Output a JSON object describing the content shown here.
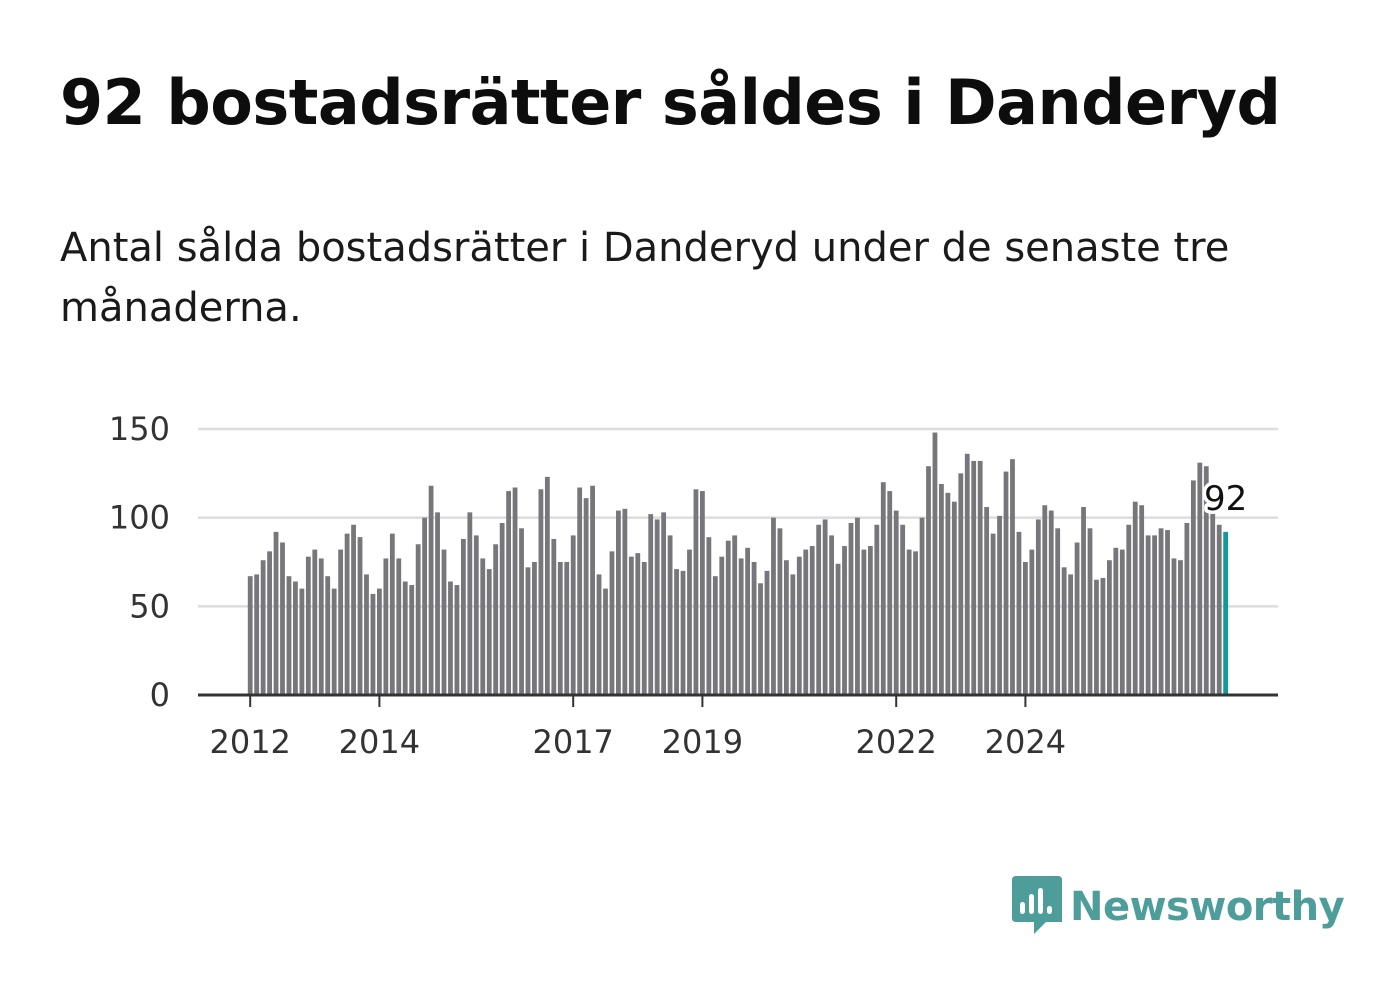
{
  "header": {
    "title": "92 bostadsrätter såldes i Danderyd",
    "subtitle": "Antal sålda bostadsrätter i Danderyd under de senaste tre månaderna."
  },
  "brand": {
    "name": "Newsworthy",
    "icon": "newsworthy-logo-icon"
  },
  "colors": {
    "bar": "#77767b",
    "highlight": "#129a99",
    "grid": "#dddddd",
    "axis": "#333333",
    "brand": "#4d9e9a"
  },
  "chart_data": {
    "type": "bar",
    "title": "Antal sålda bostadsrätter i Danderyd",
    "xlabel": "",
    "ylabel": "",
    "ylim": [
      0,
      150
    ],
    "yticks": [
      0,
      50,
      100,
      150
    ],
    "xtick_labels": [
      {
        "label": "2012",
        "index": 0
      },
      {
        "label": "2014",
        "index": 20
      },
      {
        "label": "2017",
        "index": 50
      },
      {
        "label": "2019",
        "index": 70
      },
      {
        "label": "2022",
        "index": 100
      },
      {
        "label": "2024",
        "index": 120
      }
    ],
    "values": [
      67,
      68,
      76,
      81,
      92,
      86,
      67,
      64,
      60,
      78,
      82,
      77,
      67,
      60,
      82,
      91,
      96,
      89,
      68,
      57,
      60,
      77,
      91,
      77,
      64,
      62,
      85,
      100,
      118,
      103,
      82,
      64,
      62,
      88,
      103,
      90,
      77,
      71,
      85,
      97,
      115,
      117,
      94,
      72,
      75,
      116,
      123,
      88,
      75,
      75,
      90,
      117,
      111,
      118,
      68,
      60,
      81,
      104,
      105,
      78,
      80,
      75,
      102,
      99,
      103,
      90,
      71,
      70,
      82,
      116,
      115,
      89,
      67,
      78,
      87,
      90,
      77,
      83,
      75,
      63,
      70,
      100,
      94,
      76,
      68,
      78,
      82,
      84,
      96,
      99,
      90,
      74,
      84,
      97,
      100,
      82,
      84,
      96,
      120,
      115,
      104,
      96,
      82,
      81,
      100,
      129,
      148,
      119,
      114,
      109,
      125,
      136,
      132,
      132,
      106,
      91,
      101,
      126,
      133,
      92,
      75,
      82,
      99,
      107,
      104,
      94,
      72,
      68,
      86,
      106,
      94,
      65,
      66,
      76,
      83,
      82,
      96,
      109,
      107,
      90,
      90,
      94,
      93,
      77,
      76,
      97,
      121,
      131,
      129,
      105,
      96,
      92
    ],
    "highlight": {
      "index": 151,
      "value": 92,
      "label": "92"
    }
  }
}
